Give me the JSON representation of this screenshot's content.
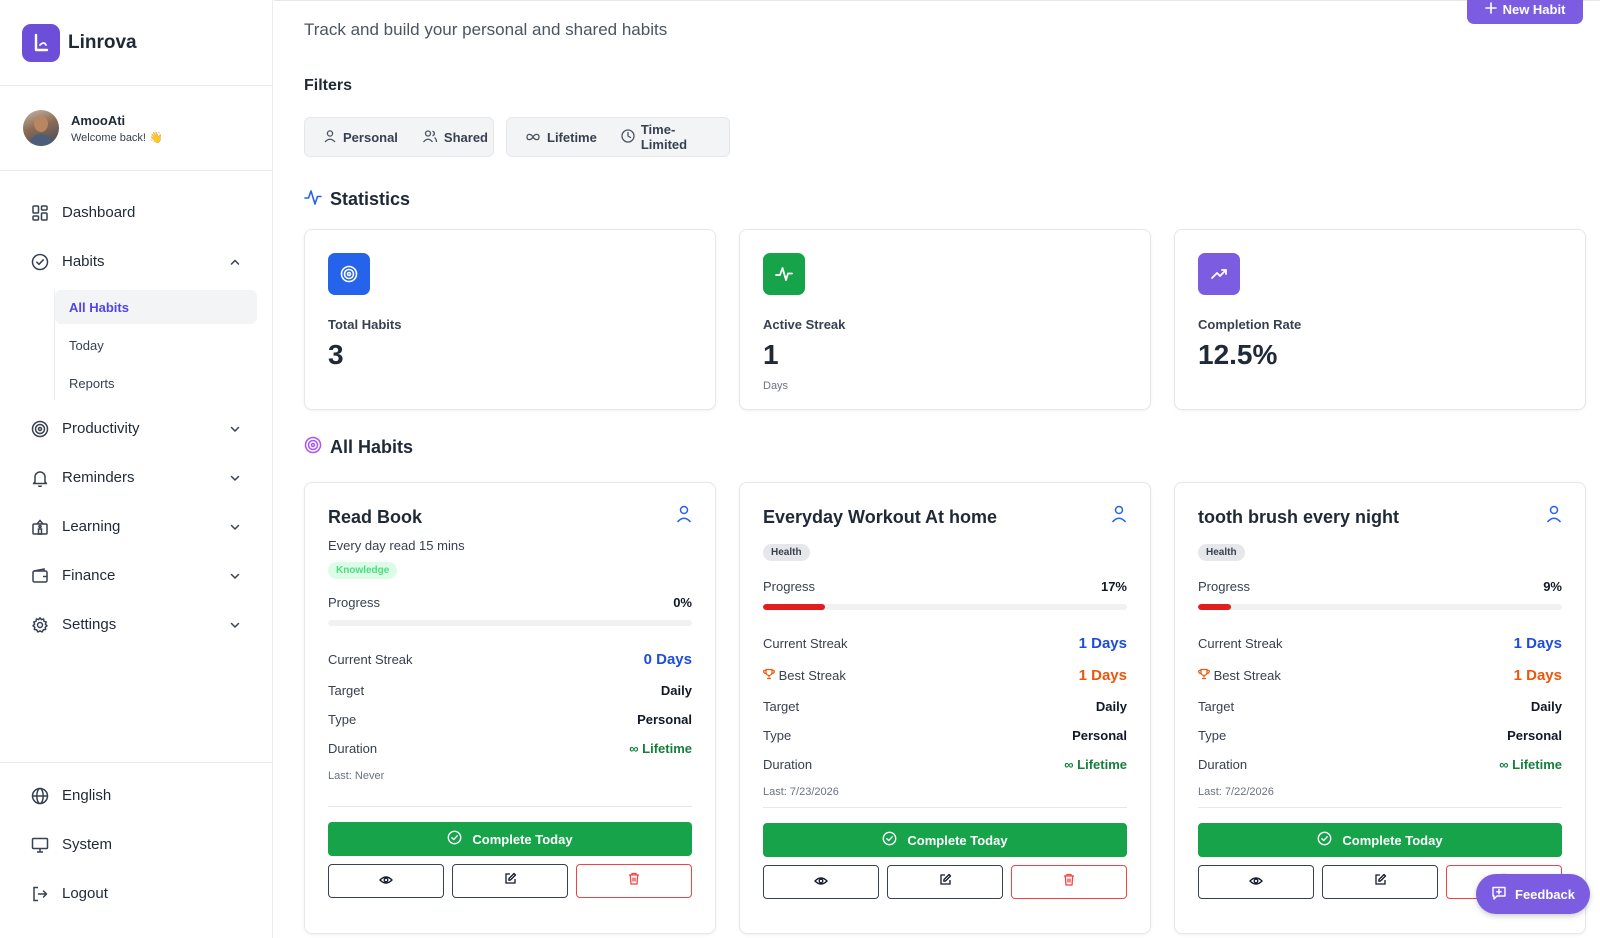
{
  "app": {
    "name": "Linrova"
  },
  "user": {
    "name": "AmooAti",
    "welcome": "Welcome back! 👋"
  },
  "nav": {
    "dashboard": "Dashboard",
    "habits": "Habits",
    "habits_sub": [
      "All Habits",
      "Today",
      "Reports"
    ],
    "productivity": "Productivity",
    "reminders": "Reminders",
    "learning": "Learning",
    "finance": "Finance",
    "settings": "Settings"
  },
  "bottom_nav": {
    "language": "English",
    "theme": "System",
    "logout": "Logout"
  },
  "header": {
    "subtitle": "Track and build your personal and shared habits",
    "new_habit": "New Habit"
  },
  "filters": {
    "title": "Filters",
    "group1": [
      "Personal",
      "Shared"
    ],
    "group2": [
      "Lifetime",
      "Time-Limited"
    ]
  },
  "statistics": {
    "title": "Statistics",
    "cards": [
      {
        "label": "Total Habits",
        "value": "3",
        "unit": "",
        "color": "#2563eb",
        "icon": "target-icon"
      },
      {
        "label": "Active Streak",
        "value": "1",
        "unit": "Days",
        "color": "#16a34a",
        "icon": "activity-icon"
      },
      {
        "label": "Completion Rate",
        "value": "12.5%",
        "unit": "",
        "color": "#7c5ce0",
        "icon": "trending-up-icon"
      }
    ]
  },
  "habits": {
    "title": "All Habits",
    "labels": {
      "progress": "Progress",
      "current_streak": "Current Streak",
      "best_streak": "Best Streak",
      "target": "Target",
      "type": "Type",
      "duration": "Duration",
      "complete": "Complete Today"
    },
    "items": [
      {
        "title": "Read Book",
        "description": "Every day read 15 mins",
        "tag": "Knowledge",
        "progress": 0,
        "progress_text": "0%",
        "current_streak": "0 Days",
        "best_streak": "",
        "target": "Daily",
        "type": "Personal",
        "duration": "Lifetime",
        "last": "Last: Never"
      },
      {
        "title": "Everyday Workout At home",
        "description": "",
        "tag": "Health",
        "progress": 17,
        "progress_text": "17%",
        "current_streak": "1 Days",
        "best_streak": "1 Days",
        "target": "Daily",
        "type": "Personal",
        "duration": "Lifetime",
        "last": "Last: 7/23/2026"
      },
      {
        "title": "tooth brush every night",
        "description": "",
        "tag": "Health",
        "progress": 9,
        "progress_text": "9%",
        "current_streak": "1 Days",
        "best_streak": "1 Days",
        "target": "Daily",
        "type": "Personal",
        "duration": "Lifetime",
        "last": "Last: 7/22/2026"
      }
    ]
  },
  "feedback": "Feedback"
}
